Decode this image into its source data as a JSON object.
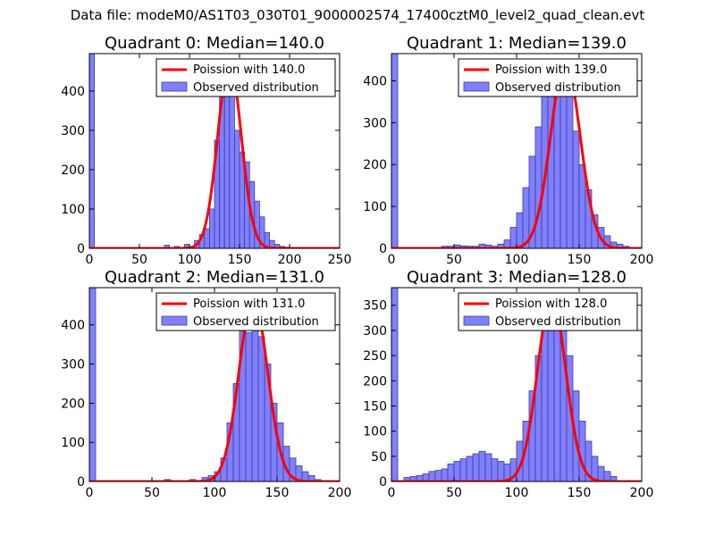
{
  "figure_title": "Data file: modeM0/AS1T03_030T01_9000002574_17400cztM0_level2_quad_clean.evt",
  "colors": {
    "bar_fill": "#8080ff",
    "bar_stroke": "#3a3aa0",
    "curve": "#ff0000"
  },
  "chart_data": [
    {
      "type": "bar",
      "title": "Quadrant 0: Median=140.0",
      "median": 140.0,
      "legend": [
        "Poission with 140.0",
        "Observed distribution"
      ],
      "legend_position": "top-right",
      "xlim": [
        0,
        250
      ],
      "ylim": [
        0,
        495
      ],
      "xticks": [
        0,
        50,
        100,
        150,
        200,
        250
      ],
      "yticks": [
        0,
        100,
        200,
        300,
        400
      ],
      "bin_width": 5,
      "bins": [
        [
          0,
          495
        ],
        [
          75,
          8
        ],
        [
          85,
          5
        ],
        [
          95,
          10
        ],
        [
          105,
          20
        ],
        [
          110,
          35
        ],
        [
          115,
          50
        ],
        [
          120,
          100
        ],
        [
          125,
          275
        ],
        [
          130,
          400
        ],
        [
          135,
          450
        ],
        [
          140,
          415
        ],
        [
          145,
          300
        ],
        [
          150,
          245
        ],
        [
          155,
          220
        ],
        [
          160,
          170
        ],
        [
          165,
          120
        ],
        [
          170,
          80
        ],
        [
          175,
          40
        ],
        [
          180,
          20
        ],
        [
          185,
          10
        ],
        [
          190,
          5
        ],
        [
          195,
          3
        ]
      ],
      "poisson_peak": 470
    },
    {
      "type": "bar",
      "title": "Quadrant 1: Median=139.0",
      "median": 139.0,
      "legend": [
        "Poission with 139.0",
        "Observed distribution"
      ],
      "legend_position": "top-right",
      "xlim": [
        0,
        200
      ],
      "ylim": [
        0,
        465
      ],
      "xticks": [
        0,
        50,
        100,
        150,
        200
      ],
      "yticks": [
        0,
        100,
        200,
        300,
        400
      ],
      "bin_width": 5,
      "bins": [
        [
          0,
          465
        ],
        [
          40,
          5
        ],
        [
          45,
          5
        ],
        [
          50,
          8
        ],
        [
          55,
          6
        ],
        [
          60,
          5
        ],
        [
          65,
          5
        ],
        [
          70,
          10
        ],
        [
          75,
          8
        ],
        [
          80,
          5
        ],
        [
          85,
          10
        ],
        [
          90,
          20
        ],
        [
          95,
          50
        ],
        [
          100,
          85
        ],
        [
          105,
          145
        ],
        [
          110,
          220
        ],
        [
          115,
          290
        ],
        [
          120,
          375
        ],
        [
          125,
          400
        ],
        [
          130,
          440
        ],
        [
          135,
          420
        ],
        [
          140,
          365
        ],
        [
          145,
          280
        ],
        [
          150,
          200
        ],
        [
          155,
          140
        ],
        [
          160,
          80
        ],
        [
          165,
          50
        ],
        [
          170,
          30
        ],
        [
          175,
          15
        ],
        [
          180,
          10
        ],
        [
          185,
          5
        ]
      ],
      "poisson_peak": 445
    },
    {
      "type": "bar",
      "title": "Quadrant 2: Median=131.0",
      "median": 131.0,
      "legend": [
        "Poission with 131.0",
        "Observed distribution"
      ],
      "legend_position": "top-right",
      "xlim": [
        0,
        200
      ],
      "ylim": [
        0,
        495
      ],
      "xticks": [
        0,
        50,
        100,
        150,
        200
      ],
      "yticks": [
        0,
        100,
        200,
        300,
        400
      ],
      "bin_width": 5,
      "bins": [
        [
          0,
          495
        ],
        [
          60,
          5
        ],
        [
          80,
          5
        ],
        [
          90,
          10
        ],
        [
          95,
          15
        ],
        [
          100,
          25
        ],
        [
          105,
          60
        ],
        [
          110,
          150
        ],
        [
          115,
          250
        ],
        [
          120,
          385
        ],
        [
          125,
          380
        ],
        [
          130,
          420
        ],
        [
          135,
          370
        ],
        [
          140,
          300
        ],
        [
          145,
          200
        ],
        [
          150,
          150
        ],
        [
          155,
          90
        ],
        [
          160,
          60
        ],
        [
          165,
          40
        ],
        [
          170,
          25
        ],
        [
          175,
          15
        ],
        [
          180,
          5
        ]
      ],
      "poisson_peak": 465
    },
    {
      "type": "bar",
      "title": "Quadrant 3: Median=128.0",
      "median": 128.0,
      "legend": [
        "Poission with 128.0",
        "Observed distribution"
      ],
      "legend_position": "top-right",
      "xlim": [
        0,
        200
      ],
      "ylim": [
        0,
        385
      ],
      "xticks": [
        0,
        50,
        100,
        150,
        200
      ],
      "yticks": [
        0,
        50,
        100,
        150,
        200,
        250,
        300,
        350
      ],
      "bin_width": 5,
      "bins": [
        [
          0,
          385
        ],
        [
          10,
          8
        ],
        [
          15,
          10
        ],
        [
          20,
          12
        ],
        [
          25,
          15
        ],
        [
          30,
          20
        ],
        [
          35,
          22
        ],
        [
          40,
          25
        ],
        [
          45,
          35
        ],
        [
          50,
          40
        ],
        [
          55,
          45
        ],
        [
          60,
          50
        ],
        [
          65,
          55
        ],
        [
          70,
          60
        ],
        [
          75,
          55
        ],
        [
          80,
          45
        ],
        [
          85,
          40
        ],
        [
          90,
          35
        ],
        [
          95,
          45
        ],
        [
          100,
          80
        ],
        [
          105,
          120
        ],
        [
          110,
          180
        ],
        [
          115,
          250
        ],
        [
          120,
          320
        ],
        [
          125,
          355
        ],
        [
          130,
          350
        ],
        [
          135,
          300
        ],
        [
          140,
          250
        ],
        [
          145,
          180
        ],
        [
          150,
          120
        ],
        [
          155,
          80
        ],
        [
          160,
          50
        ],
        [
          165,
          30
        ],
        [
          170,
          20
        ],
        [
          175,
          10
        ]
      ],
      "poisson_peak": 365
    }
  ]
}
